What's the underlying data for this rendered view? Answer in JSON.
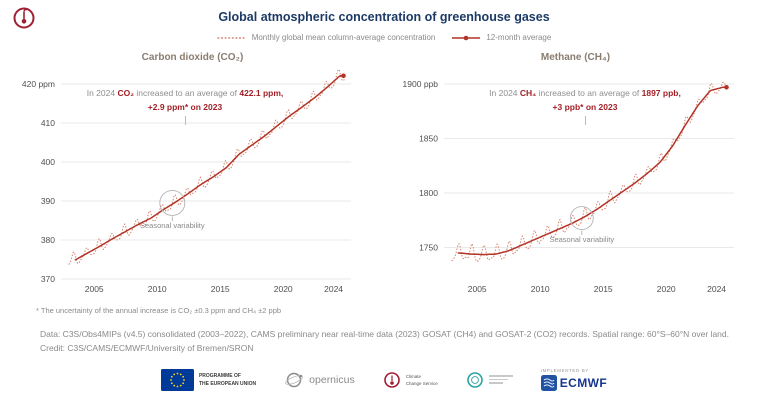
{
  "header": {
    "title": "Global atmospheric concentration of greenhouse gases",
    "legend": [
      {
        "label": "Monthly global mean column-average concentration",
        "style": "dotted"
      },
      {
        "label": "12-month average",
        "style": "solid-dot"
      }
    ]
  },
  "colors": {
    "title": "#1d3a66",
    "monthly": "#d5846e",
    "average": "#b23327",
    "accent_red": "#a31f26",
    "grid": "#e2e2e2",
    "tick": "#4f4f4f",
    "subtitle": "#8a7c6e"
  },
  "chart_data": [
    {
      "type": "line",
      "title": "Carbon dioxide (CO₂)",
      "unit": "ppm",
      "xlim": [
        2003,
        2025
      ],
      "ylim": [
        366,
        424
      ],
      "yticks": [
        370,
        380,
        390,
        400,
        410,
        420
      ],
      "xticks": [
        2005,
        2010,
        2015,
        2020,
        2024
      ],
      "years": [
        2003,
        2004,
        2005,
        2006,
        2007,
        2008,
        2009,
        2010,
        2011,
        2012,
        2013,
        2014,
        2015,
        2016,
        2017,
        2018,
        2019,
        2020,
        2021,
        2022,
        2023,
        2024
      ],
      "average": [
        374.9,
        376.7,
        378.5,
        380.4,
        382.2,
        384.0,
        385.6,
        387.8,
        389.8,
        392.0,
        394.3,
        396.3,
        398.6,
        402.0,
        404.3,
        406.6,
        409.2,
        411.8,
        414.1,
        416.5,
        419.2,
        422.1
      ],
      "monthly": {
        "amplitude": [
          1.4,
          1.4
        ],
        "phase": 0.37
      },
      "annotation": {
        "pre": "In 2024 ",
        "gas": "CO₂",
        "mid": " increased to an average of ",
        "value": "422.1 ppm,",
        "line2": "+2.9 ppm* on 2023"
      },
      "seasonal": {
        "label": "Seasonal variability",
        "year": 2011.2,
        "value": 389.5
      }
    },
    {
      "type": "line",
      "title": "Methane (CH₄)",
      "unit": "ppb",
      "xlim": [
        2003,
        2025
      ],
      "ylim": [
        1733,
        1910
      ],
      "yticks": [
        1750,
        1800,
        1850,
        1900
      ],
      "xticks": [
        2005,
        2010,
        2015,
        2020,
        2024
      ],
      "years": [
        2003,
        2004,
        2005,
        2006,
        2007,
        2008,
        2009,
        2010,
        2011,
        2012,
        2013,
        2014,
        2015,
        2016,
        2017,
        2018,
        2019,
        2020,
        2021,
        2022,
        2023,
        2024
      ],
      "average": [
        1745,
        1744,
        1743.5,
        1744,
        1747,
        1752,
        1757,
        1762,
        1767,
        1772,
        1778,
        1785,
        1793,
        1801,
        1809,
        1818,
        1828,
        1843,
        1862,
        1880,
        1894,
        1897
      ],
      "monthly": {
        "amplitude": [
          7.2,
          4.2
        ],
        "phase": 0.55
      },
      "annotation": {
        "pre": "In 2024 ",
        "gas": "CH₄",
        "mid": " increased to an average of ",
        "value": "1897 ppb,",
        "line2": "+3 ppb* on 2023"
      },
      "seasonal": {
        "label": "Seasonal variability",
        "year": 2013.3,
        "value": 1777
      }
    }
  ],
  "footnote": "* The uncertainty of the annual increase is CO₂ ±0.3 ppm and CH₄ ±2 ppb",
  "source": {
    "data": "Data: C3S/Obs4MIPs (v4.5) consolidated (2003–2022), CAMS preliminary near real-time data (2023) GOSAT (CH4) and GOSAT-2 (CO2) records. Spatial range: 60°S–60°N over land.",
    "credit": "Credit: C3S/CAMS/ECMWF/University of Bremen/SRON"
  },
  "footer": {
    "eu_line1": "PROGRAMME OF",
    "eu_line2": "THE EUROPEAN UNION",
    "copernicus": "opernicus",
    "c3s_line1": "Climate",
    "c3s_line2": "Change Service",
    "implemented_by": "IMPLEMENTED BY",
    "ecmwf": "ECMWF"
  }
}
